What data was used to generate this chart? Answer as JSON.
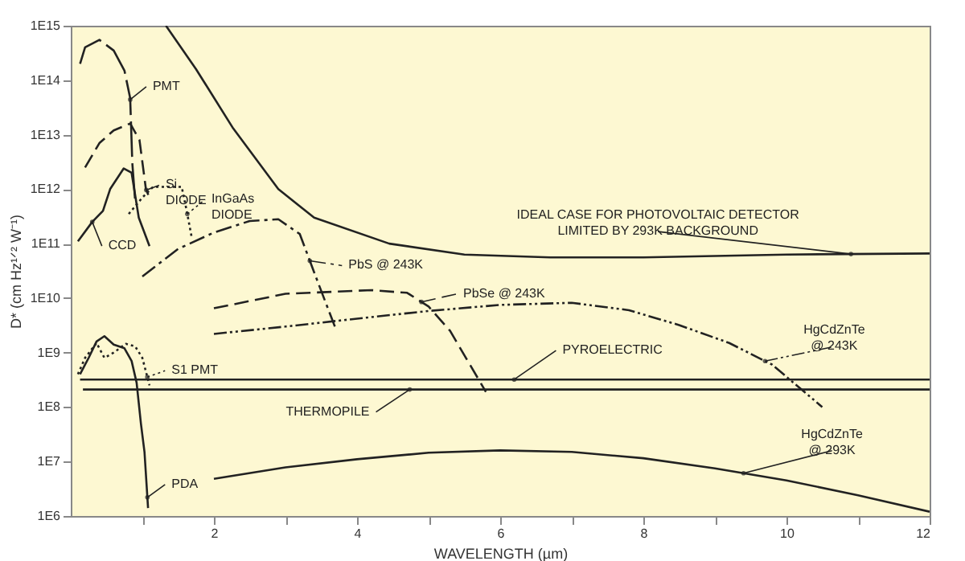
{
  "chart_data": {
    "type": "line",
    "xlabel": "WAVELENGTH (µm)",
    "ylabel": "D* (cm Hz¹ᐟ² W⁻¹)",
    "log": "y",
    "legend": "left",
    "xlim": [
      0,
      12
    ],
    "ylim": [
      1000000.0,
      1000000000000000.0
    ],
    "xticks": [
      {
        "value": 1,
        "label": null
      },
      2,
      {
        "value": 3,
        "label": null
      },
      4,
      {
        "value": 5,
        "label": null
      },
      6,
      {
        "value": 7,
        "label": null
      },
      8,
      {
        "value": 9,
        "label": null
      },
      10,
      {
        "value": 11,
        "label": null
      },
      12
    ],
    "yticks": [
      {
        "value": 1000000.0,
        "label": "1E6"
      },
      {
        "value": 10000000.0,
        "label": "1E7"
      },
      {
        "value": 100000000.0,
        "label": "1E8"
      },
      {
        "value": 1000000000.0,
        "label": "1E9"
      },
      {
        "value": 10000000000.0,
        "label": "1E10"
      },
      {
        "value": 100000000000.0,
        "label": "1E11"
      },
      {
        "value": 1000000000000.0,
        "label": "1E12"
      },
      {
        "value": 10000000000000.0,
        "label": "1E13"
      },
      {
        "value": 100000000000000.0,
        "label": "1E14"
      },
      {
        "value": 1000000000000000.0,
        "label": "1E15"
      }
    ],
    "series": [
      {
        "name": "IDEAL CASE FOR PHOTOVOLTAIC DETECTOR\nLIMITED BY 293K BACKGROUND",
        "color": "#222222",
        "line_style": "solid",
        "x": [
          1.33,
          1.75,
          2.27,
          2.9,
          3.4,
          4.45,
          5.5,
          6.7,
          8,
          10,
          12
        ],
        "values": [
          1000000000000000.0,
          160000000000000.0,
          13000000000000.0,
          1000000000000.0,
          300000000000.0,
          100000000000.0,
          63000000000.0,
          56000000000.0,
          56000000000.0,
          63000000000.0,
          66000000000.0
        ]
      },
      {
        "name": "PMT",
        "color": "#222222",
        "line_style": "longdash",
        "x": [
          0.13,
          0.2,
          0.4,
          0.6,
          0.75,
          0.83,
          0.86,
          0.9
        ],
        "values": [
          200000000000000.0,
          400000000000000.0,
          550000000000000.0,
          350000000000000.0,
          150000000000000.0,
          47000000000000.0,
          3000000000000.0,
          600000000000.0
        ]
      },
      {
        "name": "Si\nDIODE",
        "color": "#222222",
        "line_style": "dashed",
        "x": [
          0.2,
          0.4,
          0.6,
          0.83,
          0.96,
          1.05,
          1.1
        ],
        "values": [
          2500000000000.0,
          7000000000000.0,
          12000000000000.0,
          16000000000000.0,
          8000000000000.0,
          1000000000000.0,
          700000000000.0
        ]
      },
      {
        "name": "CCD",
        "color": "#222222",
        "line_style": "solid",
        "x": [
          0.1,
          0.3,
          0.45,
          0.55,
          0.74,
          0.85,
          0.95,
          1.1
        ],
        "values": [
          110000000000.0,
          250000000000.0,
          400000000000.0,
          1000000000000.0,
          2400000000000.0,
          2000000000000.0,
          300000000000.0,
          90000000000.0
        ]
      },
      {
        "name": "InGaAs\nDIODE",
        "color": "#222222",
        "line_style": "dotted",
        "x": [
          0.81,
          1.0,
          1.15,
          1.55,
          1.62,
          1.69
        ],
        "values": [
          350000000000.0,
          700000000000.0,
          1100000000000.0,
          1100000000000.0,
          400000000000.0,
          130000000000.0
        ]
      },
      {
        "name": "PbS @ 243K",
        "color": "#222222",
        "line_style": "dashdot",
        "x": [
          1.0,
          1.5,
          2.0,
          2.5,
          2.9,
          3.2,
          3.45,
          3.69
        ],
        "values": [
          25000000000.0,
          80000000000.0,
          160000000000.0,
          260000000000.0,
          280000000000.0,
          150000000000.0,
          20000000000.0,
          3000000000.0
        ]
      },
      {
        "name": "PbSe @ 243K",
        "color": "#222222",
        "line_style": "dashed",
        "x": [
          2.0,
          3.0,
          4.2,
          4.7,
          5.0,
          5.3,
          5.8
        ],
        "values": [
          6500000000.0,
          12000000000.0,
          14000000000.0,
          12500000000.0,
          7000000000.0,
          2500000000.0,
          190000000.0
        ]
      },
      {
        "name": "HgCdZnTe\n@ 243K",
        "color": "#222222",
        "line_style": "dashdotdot",
        "x": [
          2.0,
          3,
          4,
          5,
          6,
          7,
          7.8,
          8.5,
          9.2,
          9.8,
          10.5
        ],
        "values": [
          2200000000.0,
          3000000000.0,
          4200000000.0,
          5800000000.0,
          7500000000.0,
          8200000000.0,
          6000000000.0,
          3200000000.0,
          1500000000.0,
          600000000.0,
          100000000.0
        ]
      },
      {
        "name": "PYROELECTRIC",
        "color": "#222222",
        "line_style": "solid",
        "x": [
          0.13,
          12
        ],
        "values": [
          320000000.0,
          320000000.0
        ]
      },
      {
        "name": "THERMOPILE",
        "color": "#222222",
        "line_style": "solid",
        "x": [
          0.17,
          12
        ],
        "values": [
          210000000.0,
          210000000.0
        ]
      },
      {
        "name": "S1 PMT",
        "color": "#222222",
        "line_style": "dotted",
        "x": [
          0.1,
          0.2,
          0.36,
          0.47,
          0.6,
          0.77,
          0.9,
          1.0,
          1.1
        ],
        "values": [
          400000000.0,
          800000000.0,
          1500000000.0,
          800000000.0,
          1000000000.0,
          1450000000.0,
          1300000000.0,
          800000000.0,
          250000000.0
        ]
      },
      {
        "name": "PDA",
        "color": "#222222",
        "line_style": "solid",
        "x": [
          0.13,
          0.2,
          0.25,
          0.36,
          0.47,
          0.6,
          0.75,
          0.85,
          0.92,
          0.98,
          1.03,
          1.08
        ],
        "values": [
          400000000.0,
          600000000.0,
          800000000.0,
          1600000000.0,
          2000000000.0,
          1400000000.0,
          1200000000.0,
          700000000.0,
          280000000.0,
          50000000.0,
          15000000.0,
          1400000.0
        ]
      },
      {
        "name": "HgCdZnTe\n@ 293K",
        "color": "#222222",
        "line_style": "solid",
        "x": [
          2,
          3,
          4,
          5,
          6,
          7,
          8,
          9,
          10,
          11,
          12
        ],
        "values": [
          4800000.0,
          7800000.0,
          11000000.0,
          14500000.0,
          16000000.0,
          15000000.0,
          11500000.0,
          7500000.0,
          4500000.0,
          2400000.0,
          1200000.0
        ]
      }
    ]
  }
}
